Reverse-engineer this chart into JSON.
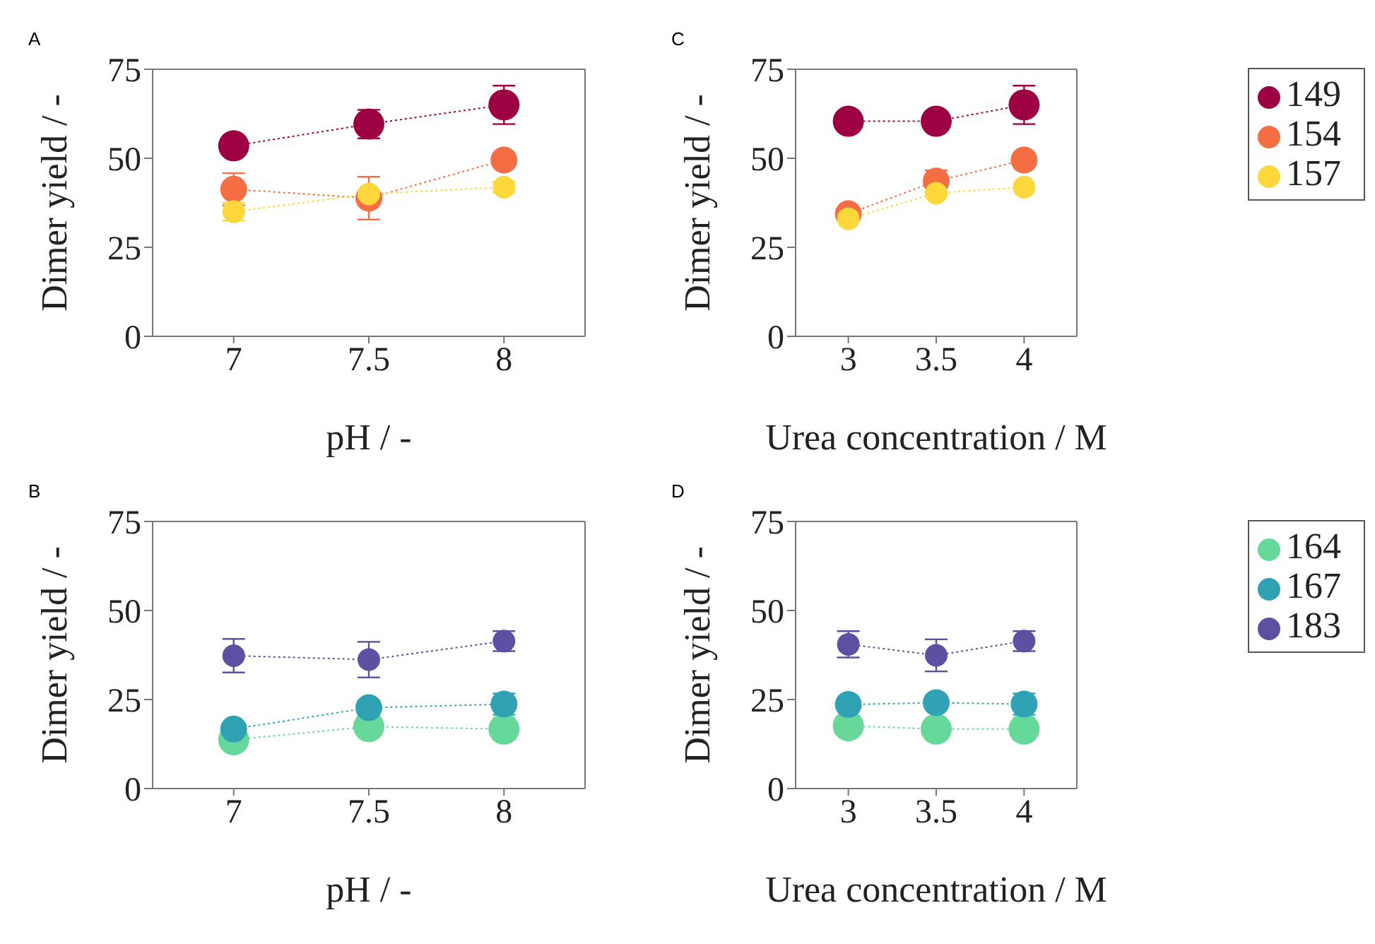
{
  "chart_data": [
    {
      "type": "line",
      "annotations": [
        "A"
      ],
      "xlabel": "pH / -",
      "ylabel": "Dimer yield / -",
      "x": [
        7,
        7.5,
        8
      ],
      "xlim": [
        6.7,
        8.3
      ],
      "xticks": [
        7,
        7.5,
        8
      ],
      "ylim": [
        0,
        75
      ],
      "yticks": [
        0,
        25,
        50,
        75
      ],
      "grid": false,
      "legend": false,
      "marker": "circle",
      "line_style": "dotted",
      "series": [
        {
          "color": "#9e0142",
          "values": [
            53.5,
            59.6,
            65
          ],
          "errors": [
            2.5,
            4,
            5.4
          ]
        },
        {
          "color": "#f46d43",
          "values": [
            41.3,
            38.8,
            49.5
          ],
          "errors": [
            4.5,
            6,
            null
          ]
        },
        {
          "color": "#fdd83a",
          "values": [
            35,
            40,
            41.9
          ],
          "errors": [
            2.5,
            null,
            1.5
          ]
        }
      ]
    },
    {
      "type": "line",
      "annotations": [
        "C"
      ],
      "xlabel": "Urea concentration / M",
      "ylabel": "Dimer yield / -",
      "x": [
        3,
        3.5,
        4
      ],
      "xlim": [
        2.7,
        4.3
      ],
      "xticks": [
        3,
        3.5,
        4
      ],
      "ylim": [
        0,
        75
      ],
      "yticks": [
        0,
        25,
        50,
        75
      ],
      "grid": false,
      "legend": "top right",
      "marker": "circle",
      "line_style": "dotted",
      "series": [
        {
          "name": "149",
          "color": "#9e0142",
          "values": [
            60.4,
            60.4,
            65
          ],
          "errors": [
            null,
            null,
            5.4
          ]
        },
        {
          "name": "154",
          "color": "#f46d43",
          "values": [
            34.4,
            43.6,
            49.5
          ],
          "errors": [
            null,
            3,
            null
          ]
        },
        {
          "name": "157",
          "color": "#fdd83a",
          "values": [
            33,
            40.2,
            41.9
          ]
        }
      ]
    },
    {
      "type": "line",
      "annotations": [
        "B"
      ],
      "xlabel": "pH / -",
      "ylabel": "Dimer yield / -",
      "x": [
        7,
        7.5,
        8
      ],
      "xlim": [
        6.7,
        8.3
      ],
      "xticks": [
        7,
        7.5,
        8
      ],
      "ylim": [
        0,
        75
      ],
      "yticks": [
        0,
        25,
        50,
        75
      ],
      "grid": false,
      "legend": false,
      "marker": "circle",
      "line_style": "dotted",
      "series": [
        {
          "color": "#66d99a",
          "values": [
            13.7,
            17.4,
            16.7
          ],
          "errors": [
            null,
            2,
            3
          ]
        },
        {
          "color": "#2fa3b3",
          "values": [
            16.7,
            22.7,
            23.7
          ],
          "errors": [
            null,
            2,
            3
          ]
        },
        {
          "color": "#5e4fa2",
          "values": [
            37.3,
            36.2,
            41.4
          ],
          "errors": [
            4.7,
            5,
            2.8
          ]
        }
      ]
    },
    {
      "type": "line",
      "annotations": [
        "D"
      ],
      "xlabel": "Urea concentration / M",
      "ylabel": "Dimer yield / -",
      "x": [
        3,
        3.5,
        4
      ],
      "xlim": [
        2.7,
        4.3
      ],
      "xticks": [
        3,
        3.5,
        4
      ],
      "ylim": [
        0,
        75
      ],
      "yticks": [
        0,
        25,
        50,
        75
      ],
      "grid": false,
      "legend": "top right",
      "marker": "circle",
      "line_style": "dotted",
      "series": [
        {
          "name": "164",
          "color": "#66d99a",
          "values": [
            17.6,
            16.7,
            16.7
          ],
          "errors": [
            null,
            null,
            3
          ]
        },
        {
          "name": "167",
          "color": "#2fa3b3",
          "values": [
            23.6,
            24.1,
            23.7
          ],
          "errors": [
            null,
            null,
            3
          ]
        },
        {
          "name": "183",
          "color": "#5e4fa2",
          "values": [
            40.5,
            37.4,
            41.4
          ],
          "errors": [
            3.7,
            4.5,
            2.8
          ]
        }
      ]
    }
  ]
}
